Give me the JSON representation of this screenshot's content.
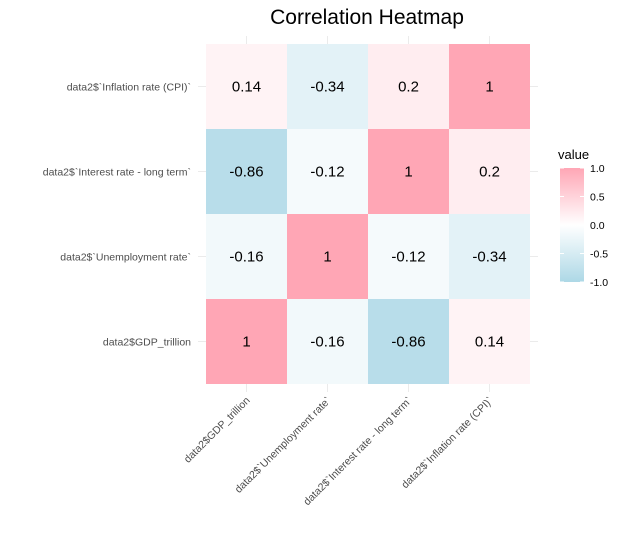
{
  "chart_data": {
    "type": "heatmap",
    "title": "Correlation Heatmap",
    "x_labels": [
      "data2$GDP_trillion",
      "data2$`Unemployment rate`",
      "data2$`Interest rate - long term`",
      "data2$`Inflation rate (CPI)`"
    ],
    "y_labels": [
      "data2$GDP_trillion",
      "data2$`Unemployment rate`",
      "data2$`Interest rate - long term`",
      "data2$`Inflation rate (CPI)`"
    ],
    "cells": [
      {
        "x": "data2$GDP_trillion",
        "y": "data2$GDP_trillion",
        "value": 1
      },
      {
        "x": "data2$`Unemployment rate`",
        "y": "data2$GDP_trillion",
        "value": -0.16
      },
      {
        "x": "data2$`Interest rate - long term`",
        "y": "data2$GDP_trillion",
        "value": -0.86
      },
      {
        "x": "data2$`Inflation rate (CPI)`",
        "y": "data2$GDP_trillion",
        "value": 0.14
      },
      {
        "x": "data2$GDP_trillion",
        "y": "data2$`Unemployment rate`",
        "value": -0.16
      },
      {
        "x": "data2$`Unemployment rate`",
        "y": "data2$`Unemployment rate`",
        "value": 1
      },
      {
        "x": "data2$`Interest rate - long term`",
        "y": "data2$`Unemployment rate`",
        "value": -0.12
      },
      {
        "x": "data2$`Inflation rate (CPI)`",
        "y": "data2$`Unemployment rate`",
        "value": -0.34
      },
      {
        "x": "data2$GDP_trillion",
        "y": "data2$`Interest rate - long term`",
        "value": -0.86
      },
      {
        "x": "data2$`Unemployment rate`",
        "y": "data2$`Interest rate - long term`",
        "value": -0.12
      },
      {
        "x": "data2$`Interest rate - long term`",
        "y": "data2$`Interest rate - long term`",
        "value": 1
      },
      {
        "x": "data2$`Inflation rate (CPI)`",
        "y": "data2$`Interest rate - long term`",
        "value": 0.2
      },
      {
        "x": "data2$GDP_trillion",
        "y": "data2$`Inflation rate (CPI)`",
        "value": 0.14
      },
      {
        "x": "data2$`Unemployment rate`",
        "y": "data2$`Inflation rate (CPI)`",
        "value": -0.34
      },
      {
        "x": "data2$`Interest rate - long term`",
        "y": "data2$`Inflation rate (CPI)`",
        "value": 0.2
      },
      {
        "x": "data2$`Inflation rate (CPI)`",
        "y": "data2$`Inflation rate (CPI)`",
        "value": 1
      }
    ],
    "legend": {
      "title": "value",
      "ticks": [
        "1.0",
        "0.5",
        "0.0",
        "-0.5",
        "-1.0"
      ],
      "placement": "right"
    },
    "value_range": [
      -1,
      1
    ],
    "colors": {
      "low": "#add8e6",
      "mid": "#ffffff",
      "high": "#ffa6b5",
      "grid": "#ebebeb",
      "text": "#000000",
      "axis_text": "#4d4d4d"
    }
  }
}
